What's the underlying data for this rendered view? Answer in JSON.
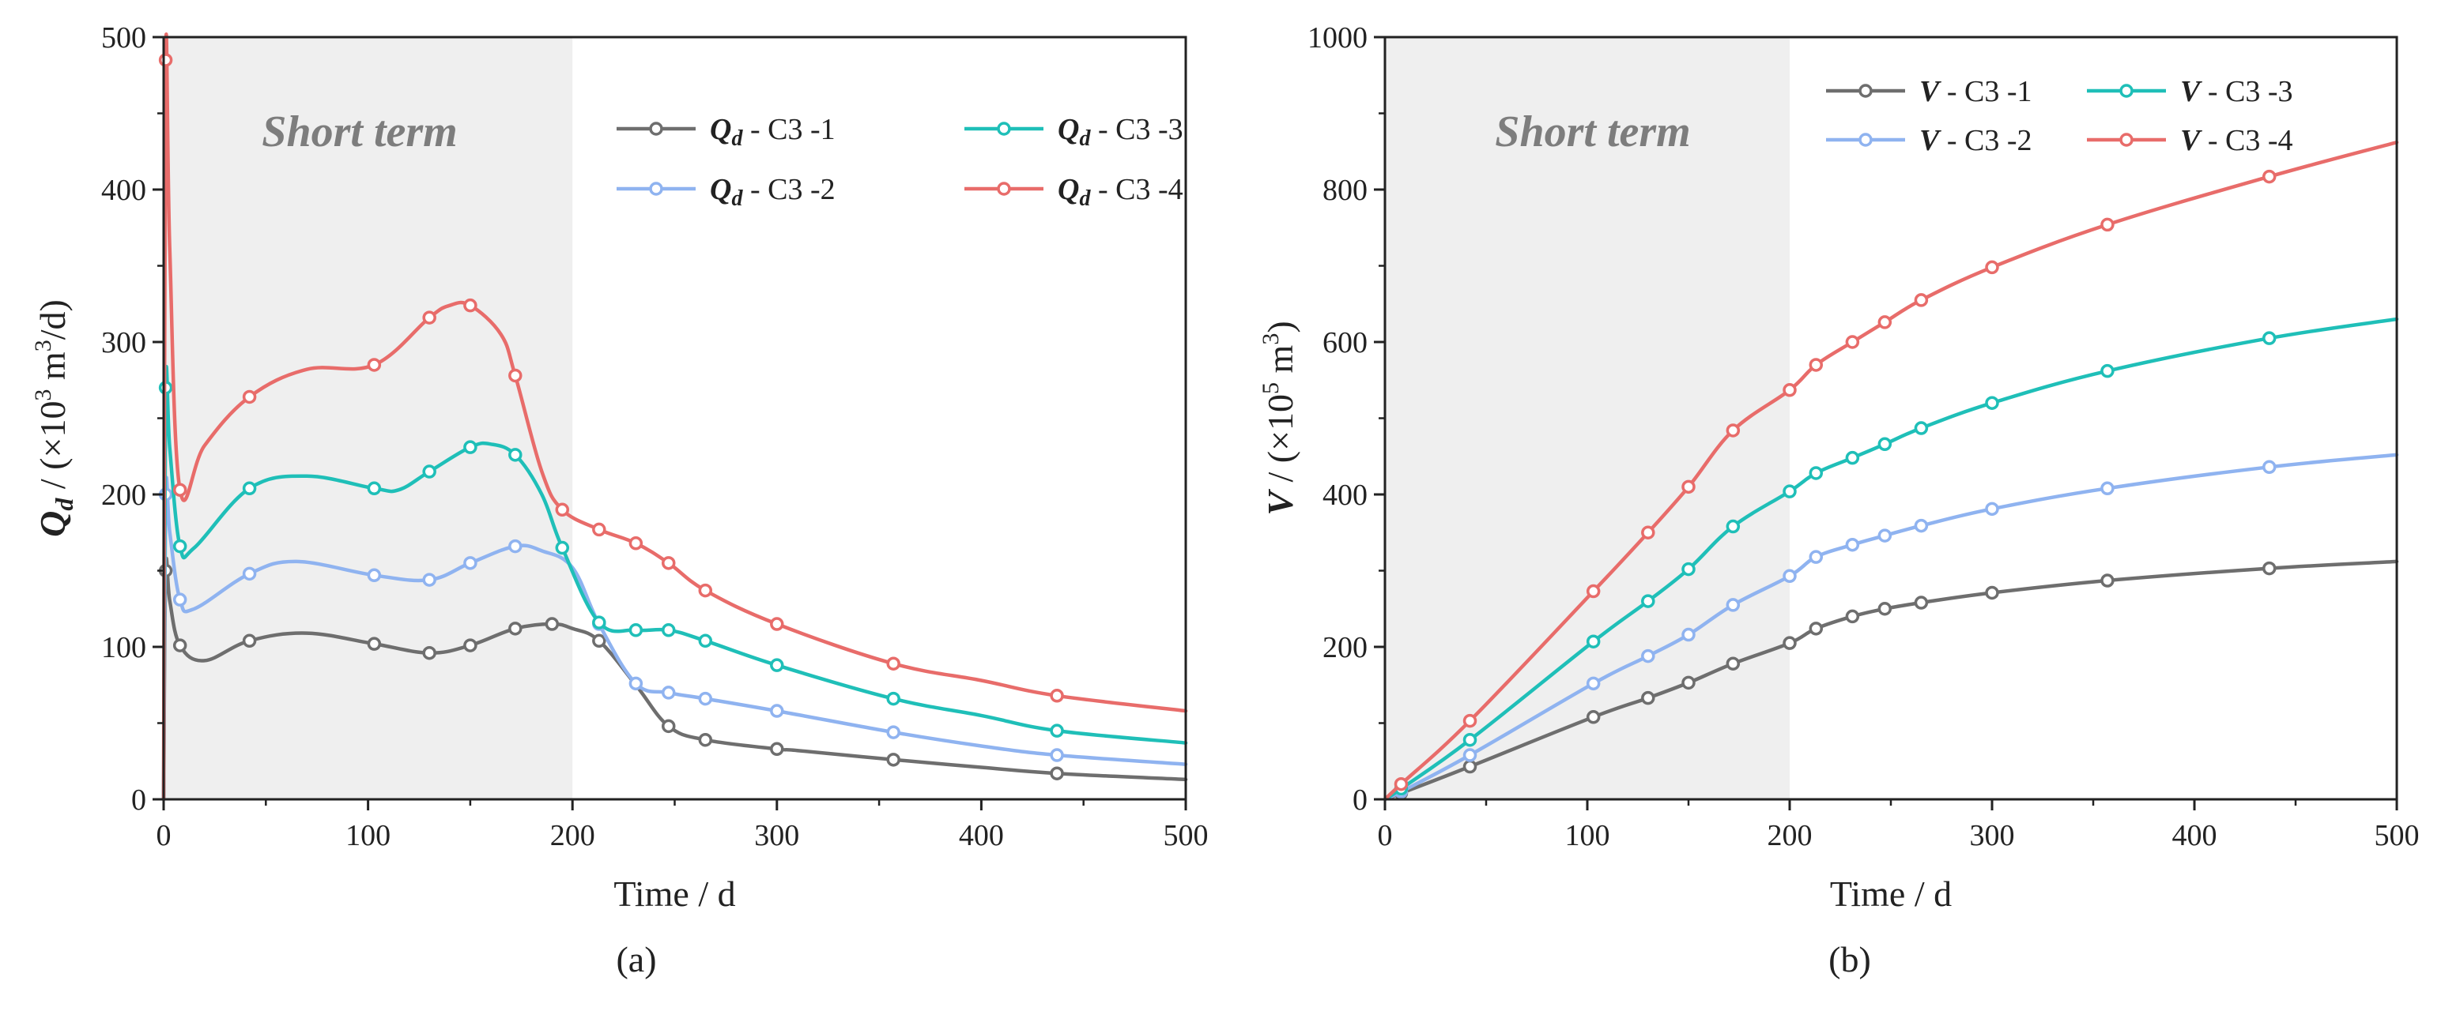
{
  "chart_data": [
    {
      "type": "line",
      "panel_label": "(a)",
      "xlabel": "Time / d",
      "ylabel": {
        "symbol": "Q",
        "sub": "d",
        "unit_pre": " / (×10",
        "exp": "3",
        "unit_mid": " m",
        "exp2": "3",
        "unit_post": "/d)"
      },
      "xlim": [
        0,
        500
      ],
      "ylim": [
        0,
        500
      ],
      "xticks": [
        0,
        100,
        200,
        300,
        400,
        500
      ],
      "yticks": [
        0,
        100,
        200,
        300,
        400,
        500
      ],
      "shaded_region": {
        "x_from": 0,
        "x_to": 200,
        "label": "Short term"
      },
      "legend_position": "top-right",
      "series": [
        {
          "name": "C3 -1",
          "legend_symbol": "Q",
          "legend_sub": "d",
          "legend_suffix": " - C3 -1",
          "color": "#6e6e6e",
          "x": [
            0,
            1,
            3,
            8,
            20,
            42,
            70,
            103,
            130,
            150,
            172,
            190,
            200,
            213,
            231,
            247,
            265,
            300,
            310,
            357,
            400,
            437,
            500
          ],
          "y": [
            0,
            150,
            130,
            101,
            91,
            104,
            109,
            102,
            96,
            101,
            112,
            115,
            112,
            104,
            75,
            48,
            39,
            33,
            32,
            26,
            21,
            17,
            13
          ],
          "markers_x": [
            1,
            8,
            42,
            103,
            130,
            150,
            172,
            190,
            213,
            247,
            265,
            300,
            357,
            437
          ]
        },
        {
          "name": "C3 -2",
          "legend_symbol": "Q",
          "legend_sub": "d",
          "legend_suffix": " - C3 -2",
          "color": "#8fb3f0",
          "x": [
            0,
            1,
            3,
            8,
            15,
            42,
            65,
            103,
            130,
            150,
            172,
            185,
            200,
            213,
            231,
            247,
            265,
            300,
            357,
            400,
            437,
            500
          ],
          "y": [
            0,
            200,
            175,
            131,
            125,
            148,
            156,
            147,
            144,
            155,
            166,
            163,
            152,
            115,
            76,
            70,
            66,
            58,
            44,
            35,
            29,
            23
          ],
          "markers_x": [
            1,
            8,
            42,
            103,
            130,
            150,
            172,
            213,
            231,
            247,
            265,
            300,
            357,
            437
          ]
        },
        {
          "name": "C3 -3",
          "legend_symbol": "Q",
          "legend_sub": "d",
          "legend_suffix": " - C3 -3",
          "color": "#1fbfb8",
          "x": [
            0,
            1,
            3,
            8,
            15,
            42,
            70,
            103,
            115,
            130,
            150,
            160,
            172,
            185,
            195,
            213,
            231,
            247,
            265,
            300,
            357,
            400,
            437,
            500
          ],
          "y": [
            0,
            270,
            230,
            166,
            165,
            204,
            212,
            204,
            203,
            215,
            231,
            233,
            226,
            200,
            165,
            116,
            111,
            111,
            104,
            88,
            66,
            55,
            45,
            37
          ],
          "markers_x": [
            1,
            8,
            42,
            103,
            130,
            150,
            172,
            195,
            213,
            231,
            247,
            265,
            300,
            357,
            437
          ]
        },
        {
          "name": "C3 -4",
          "legend_symbol": "Q",
          "legend_sub": "d",
          "legend_suffix": " - C3 -4",
          "color": "#e86c6a",
          "x": [
            0,
            1,
            3,
            8,
            20,
            42,
            70,
            103,
            130,
            140,
            150,
            165,
            172,
            185,
            195,
            213,
            231,
            247,
            265,
            300,
            357,
            400,
            437,
            500
          ],
          "y": [
            0,
            485,
            360,
            203,
            232,
            264,
            282,
            285,
            316,
            324,
            324,
            305,
            278,
            215,
            190,
            177,
            168,
            155,
            137,
            115,
            89,
            78,
            68,
            58
          ],
          "markers_x": [
            1,
            8,
            42,
            103,
            130,
            150,
            172,
            195,
            213,
            231,
            247,
            265,
            300,
            357,
            437
          ]
        }
      ]
    },
    {
      "type": "line",
      "panel_label": "(b)",
      "xlabel": "Time / d",
      "ylabel": {
        "symbol": "V",
        "unit_pre": " / (×10",
        "exp": "5",
        "unit_mid": " m",
        "exp2": "3",
        "unit_post": ")"
      },
      "xlim": [
        0,
        500
      ],
      "ylim": [
        0,
        1000
      ],
      "xticks": [
        0,
        100,
        200,
        300,
        400,
        500
      ],
      "yticks": [
        0,
        200,
        400,
        600,
        800,
        1000
      ],
      "shaded_region": {
        "x_from": 0,
        "x_to": 200,
        "label": "Short term"
      },
      "legend_position": "top-right",
      "series": [
        {
          "name": "C3 -1",
          "legend_symbol": "V",
          "legend_suffix": " - C3 -1",
          "color": "#6e6e6e",
          "x": [
            0,
            8,
            42,
            103,
            130,
            150,
            172,
            200,
            213,
            231,
            247,
            265,
            300,
            357,
            437,
            500
          ],
          "y": [
            0,
            8,
            43,
            108,
            133,
            153,
            178,
            205,
            224,
            240,
            250,
            258,
            271,
            287,
            303,
            312
          ],
          "markers_x": [
            8,
            42,
            103,
            130,
            150,
            172,
            200,
            213,
            231,
            247,
            265,
            300,
            357,
            437
          ]
        },
        {
          "name": "C3 -2",
          "legend_symbol": "V",
          "legend_suffix": " - C3 -2",
          "color": "#8fb3f0",
          "x": [
            0,
            8,
            42,
            103,
            130,
            150,
            172,
            200,
            213,
            231,
            247,
            265,
            300,
            357,
            437,
            500
          ],
          "y": [
            0,
            10,
            58,
            152,
            188,
            216,
            255,
            293,
            318,
            334,
            346,
            359,
            381,
            408,
            436,
            452
          ],
          "markers_x": [
            8,
            42,
            103,
            130,
            150,
            172,
            200,
            213,
            231,
            247,
            265,
            300,
            357,
            437
          ]
        },
        {
          "name": "C3 -3",
          "legend_symbol": "V",
          "legend_suffix": " - C3 -3",
          "color": "#1fbfb8",
          "x": [
            0,
            8,
            42,
            103,
            130,
            150,
            172,
            200,
            213,
            231,
            247,
            265,
            300,
            357,
            437,
            500
          ],
          "y": [
            0,
            14,
            78,
            207,
            260,
            302,
            358,
            404,
            428,
            448,
            466,
            487,
            520,
            562,
            605,
            630
          ],
          "markers_x": [
            8,
            42,
            103,
            130,
            150,
            172,
            200,
            213,
            231,
            247,
            265,
            300,
            357,
            437
          ]
        },
        {
          "name": "C3 -4",
          "legend_symbol": "V",
          "legend_suffix": " - C3 -4",
          "color": "#e86c6a",
          "x": [
            0,
            8,
            42,
            103,
            130,
            150,
            172,
            200,
            213,
            231,
            247,
            265,
            300,
            357,
            437,
            500
          ],
          "y": [
            0,
            20,
            103,
            273,
            350,
            410,
            484,
            537,
            570,
            600,
            626,
            655,
            698,
            754,
            817,
            862
          ],
          "markers_x": [
            8,
            42,
            103,
            130,
            150,
            172,
            200,
            213,
            231,
            247,
            265,
            300,
            357,
            437
          ]
        }
      ]
    }
  ]
}
